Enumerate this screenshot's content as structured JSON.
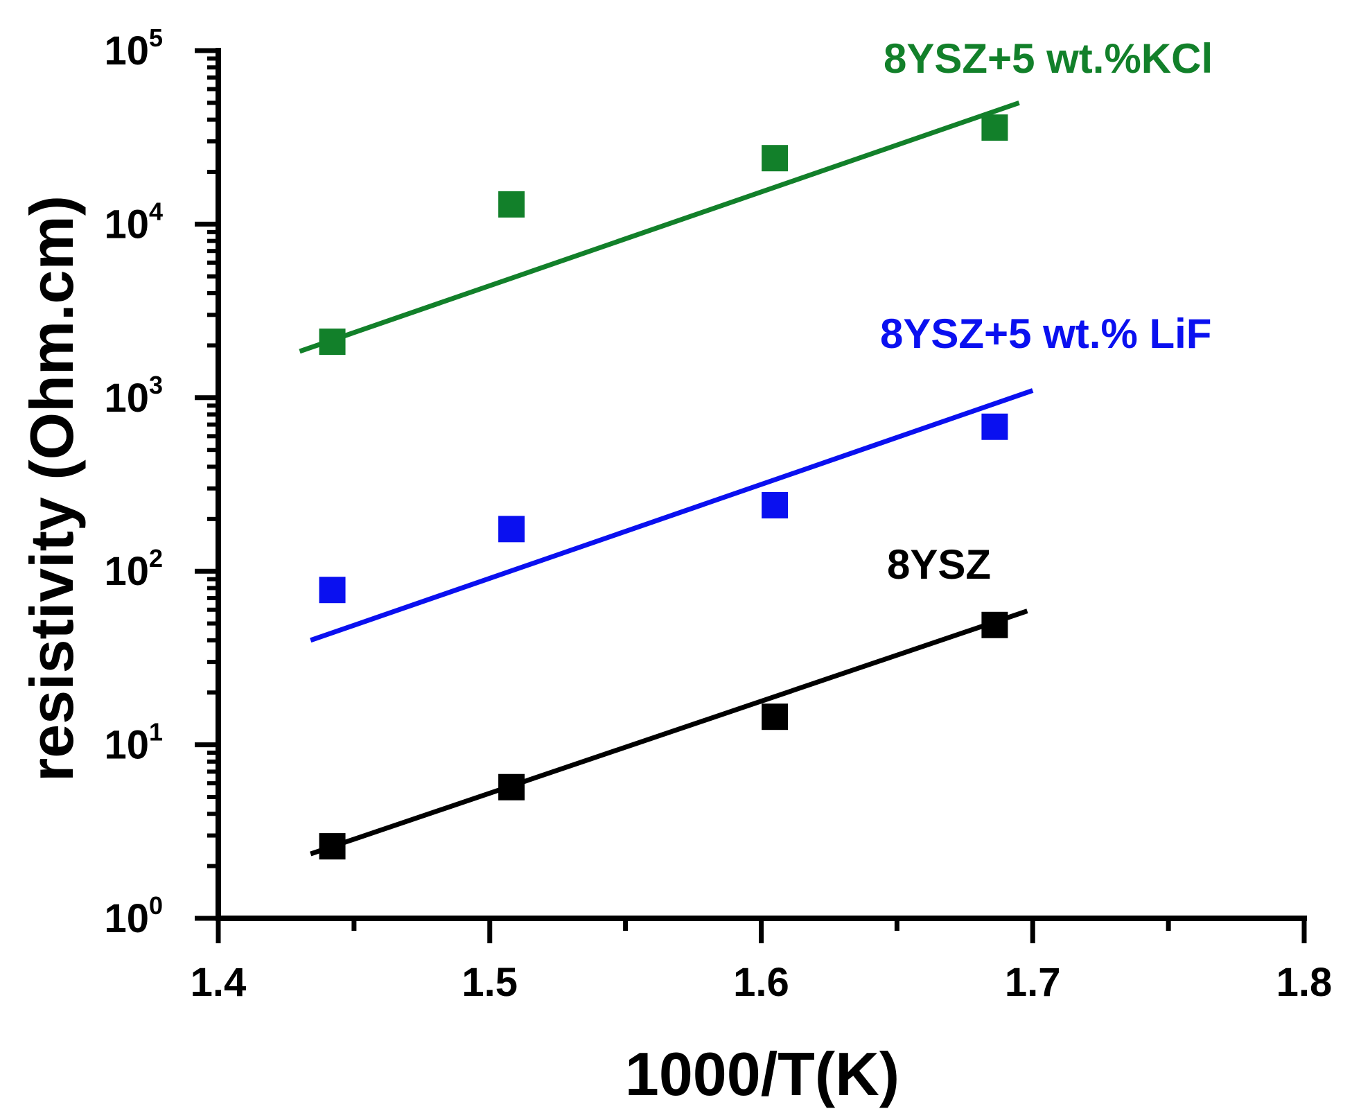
{
  "chart_data": {
    "type": "scatter",
    "xlabel": "1000/T(K)",
    "ylabel": "resistivity (Ohm.cm)",
    "xlim": [
      1.4,
      1.8
    ],
    "x_ticks": [
      "1.4",
      "1.5",
      "1.6",
      "1.7",
      "1.8"
    ],
    "x_tick_values": [
      1.4,
      1.5,
      1.6,
      1.7,
      1.8
    ],
    "yscale": "log",
    "ylim": [
      1,
      100000
    ],
    "y_ticks": [
      {
        "base": "10",
        "exp": "0",
        "value": 1
      },
      {
        "base": "10",
        "exp": "1",
        "value": 10
      },
      {
        "base": "10",
        "exp": "2",
        "value": 100
      },
      {
        "base": "10",
        "exp": "3",
        "value": 1000
      },
      {
        "base": "10",
        "exp": "4",
        "value": 10000
      },
      {
        "base": "10",
        "exp": "5",
        "value": 100000
      }
    ],
    "series": [
      {
        "name": "8YSZ+5 wt.%KCl",
        "color": "#12802a",
        "x": [
          1.442,
          1.508,
          1.605,
          1.686
        ],
        "y": [
          2100,
          13000,
          24000,
          36000
        ],
        "fit": {
          "x": [
            1.43,
            1.695
          ],
          "y": [
            1850,
            50000
          ]
        }
      },
      {
        "name": "8YSZ+5 wt.% LiF",
        "color": "#0a10f0",
        "x": [
          1.442,
          1.508,
          1.605,
          1.686
        ],
        "y": [
          78,
          175,
          240,
          680
        ],
        "fit": {
          "x": [
            1.434,
            1.7
          ],
          "y": [
            40,
            1100
          ]
        }
      },
      {
        "name": "8YSZ",
        "color": "#000000",
        "x": [
          1.442,
          1.508,
          1.605,
          1.686
        ],
        "y": [
          2.6,
          5.7,
          14.5,
          49
        ],
        "fit": {
          "x": [
            1.434,
            1.698
          ],
          "y": [
            2.35,
            59
          ]
        }
      }
    ]
  }
}
